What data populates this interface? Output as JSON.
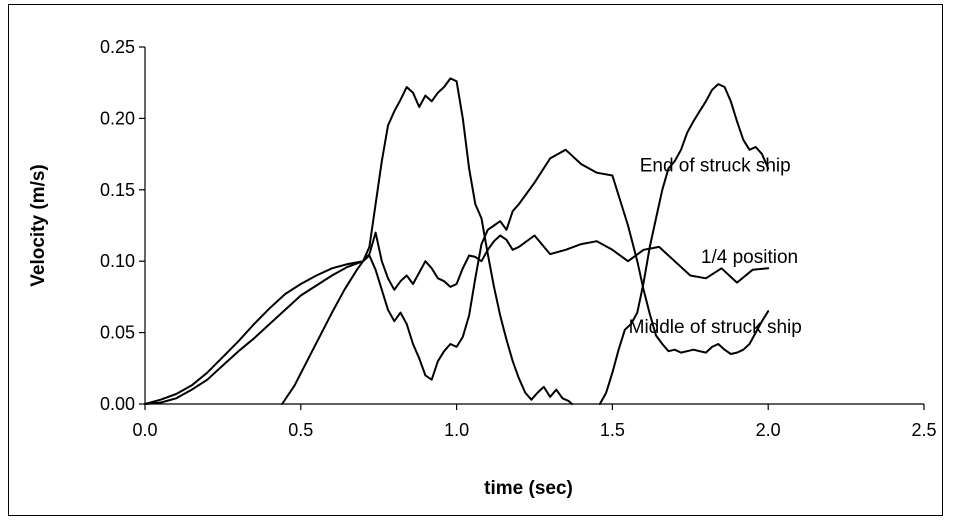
{
  "chart_data": {
    "type": "line",
    "xlabel": "time (sec)",
    "ylabel": "Velocity (m/s)",
    "xlim": [
      0.0,
      2.5
    ],
    "ylim": [
      0.0,
      0.25
    ],
    "xticks": [
      "0.0",
      "0.5",
      "1.0",
      "1.5",
      "2.0",
      "2.5"
    ],
    "yticks": [
      "0.00",
      "0.05",
      "0.10",
      "0.15",
      "0.20",
      "0.25"
    ],
    "grid": false,
    "annotations": [
      {
        "text": "End of struck ship",
        "x": 1.83,
        "y": 0.167
      },
      {
        "text": "1/4 position",
        "x": 1.94,
        "y": 0.103
      },
      {
        "text": "Middle of struck ship",
        "x": 1.83,
        "y": 0.054
      }
    ],
    "series": [
      {
        "x": [
          0.0,
          0.05,
          0.1,
          0.15,
          0.2,
          0.25,
          0.3,
          0.35,
          0.4,
          0.45,
          0.5,
          0.55,
          0.6,
          0.65,
          0.7,
          0.72,
          0.74,
          0.76,
          0.78,
          0.8,
          0.82,
          0.84,
          0.86,
          0.88,
          0.9,
          0.92,
          0.94,
          0.96,
          0.98,
          1.0,
          1.02,
          1.04,
          1.06,
          1.08,
          1.1,
          1.12,
          1.14,
          1.16,
          1.18,
          1.2,
          1.22,
          1.24,
          1.26,
          1.28,
          1.3,
          1.32,
          1.34,
          1.36,
          1.37
        ],
        "y": [
          0.0,
          0.003,
          0.007,
          0.013,
          0.022,
          0.033,
          0.044,
          0.056,
          0.067,
          0.077,
          0.084,
          0.09,
          0.095,
          0.098,
          0.1,
          0.11,
          0.14,
          0.17,
          0.195,
          0.205,
          0.213,
          0.222,
          0.218,
          0.208,
          0.216,
          0.212,
          0.218,
          0.222,
          0.228,
          0.226,
          0.2,
          0.165,
          0.14,
          0.13,
          0.105,
          0.082,
          0.062,
          0.045,
          0.03,
          0.018,
          0.008,
          0.003,
          0.008,
          0.012,
          0.005,
          0.01,
          0.004,
          0.002,
          0.0
        ]
      },
      {
        "x": [
          0.0,
          0.05,
          0.1,
          0.15,
          0.2,
          0.25,
          0.3,
          0.35,
          0.4,
          0.45,
          0.5,
          0.55,
          0.6,
          0.65,
          0.7,
          0.72,
          0.74,
          0.76,
          0.78,
          0.8,
          0.82,
          0.84,
          0.86,
          0.88,
          0.9,
          0.92,
          0.94,
          0.96,
          0.98,
          1.0,
          1.02,
          1.04,
          1.06,
          1.08,
          1.1,
          1.12,
          1.14,
          1.16,
          1.18,
          1.2,
          1.25,
          1.3,
          1.35,
          1.4,
          1.45,
          1.5,
          1.55,
          1.6,
          1.65,
          1.7,
          1.75,
          1.8,
          1.85,
          1.9,
          1.95,
          2.0
        ],
        "y": [
          0.0,
          0.001,
          0.004,
          0.01,
          0.017,
          0.027,
          0.037,
          0.046,
          0.056,
          0.066,
          0.076,
          0.083,
          0.09,
          0.096,
          0.1,
          0.105,
          0.12,
          0.1,
          0.088,
          0.08,
          0.086,
          0.09,
          0.084,
          0.092,
          0.1,
          0.095,
          0.088,
          0.086,
          0.082,
          0.084,
          0.095,
          0.104,
          0.103,
          0.1,
          0.108,
          0.114,
          0.118,
          0.115,
          0.108,
          0.11,
          0.118,
          0.105,
          0.108,
          0.112,
          0.114,
          0.108,
          0.1,
          0.108,
          0.11,
          0.1,
          0.09,
          0.088,
          0.095,
          0.085,
          0.094,
          0.095
        ]
      },
      {
        "x": [
          0.44,
          0.48,
          0.52,
          0.56,
          0.6,
          0.64,
          0.68,
          0.7,
          0.72,
          0.74,
          0.76,
          0.78,
          0.8,
          0.82,
          0.84,
          0.86,
          0.88,
          0.9,
          0.92,
          0.94,
          0.96,
          0.98,
          1.0,
          1.02,
          1.04,
          1.06,
          1.08,
          1.1,
          1.12,
          1.14,
          1.16,
          1.18,
          1.2,
          1.25,
          1.3,
          1.35,
          1.4,
          1.45,
          1.5,
          1.55,
          1.58,
          1.6,
          1.62,
          1.64,
          1.66,
          1.68,
          1.7,
          1.72,
          1.74,
          1.76,
          1.78,
          1.8,
          1.82,
          1.84,
          1.86,
          1.88,
          1.9,
          1.92,
          1.94,
          1.96,
          1.98,
          2.0
        ],
        "y": [
          0.0,
          0.013,
          0.03,
          0.047,
          0.064,
          0.08,
          0.094,
          0.1,
          0.104,
          0.094,
          0.08,
          0.066,
          0.058,
          0.064,
          0.056,
          0.042,
          0.032,
          0.02,
          0.017,
          0.03,
          0.037,
          0.042,
          0.04,
          0.047,
          0.062,
          0.088,
          0.112,
          0.122,
          0.125,
          0.128,
          0.122,
          0.135,
          0.14,
          0.155,
          0.172,
          0.178,
          0.168,
          0.162,
          0.16,
          0.125,
          0.1,
          0.08,
          0.063,
          0.048,
          0.042,
          0.037,
          0.038,
          0.036,
          0.037,
          0.038,
          0.037,
          0.036,
          0.04,
          0.042,
          0.038,
          0.035,
          0.036,
          0.038,
          0.042,
          0.05,
          0.058,
          0.065
        ]
      },
      {
        "x": [
          1.46,
          1.48,
          1.5,
          1.52,
          1.54,
          1.56,
          1.58,
          1.6,
          1.62,
          1.64,
          1.66,
          1.68,
          1.7,
          1.72,
          1.74,
          1.76,
          1.78,
          1.8,
          1.82,
          1.84,
          1.86,
          1.88,
          1.9,
          1.92,
          1.94,
          1.96,
          1.98,
          2.0
        ],
        "y": [
          0.0,
          0.008,
          0.022,
          0.038,
          0.052,
          0.056,
          0.064,
          0.085,
          0.11,
          0.13,
          0.15,
          0.165,
          0.17,
          0.178,
          0.19,
          0.198,
          0.205,
          0.212,
          0.22,
          0.224,
          0.222,
          0.212,
          0.198,
          0.185,
          0.178,
          0.18,
          0.175,
          0.165
        ]
      }
    ]
  }
}
